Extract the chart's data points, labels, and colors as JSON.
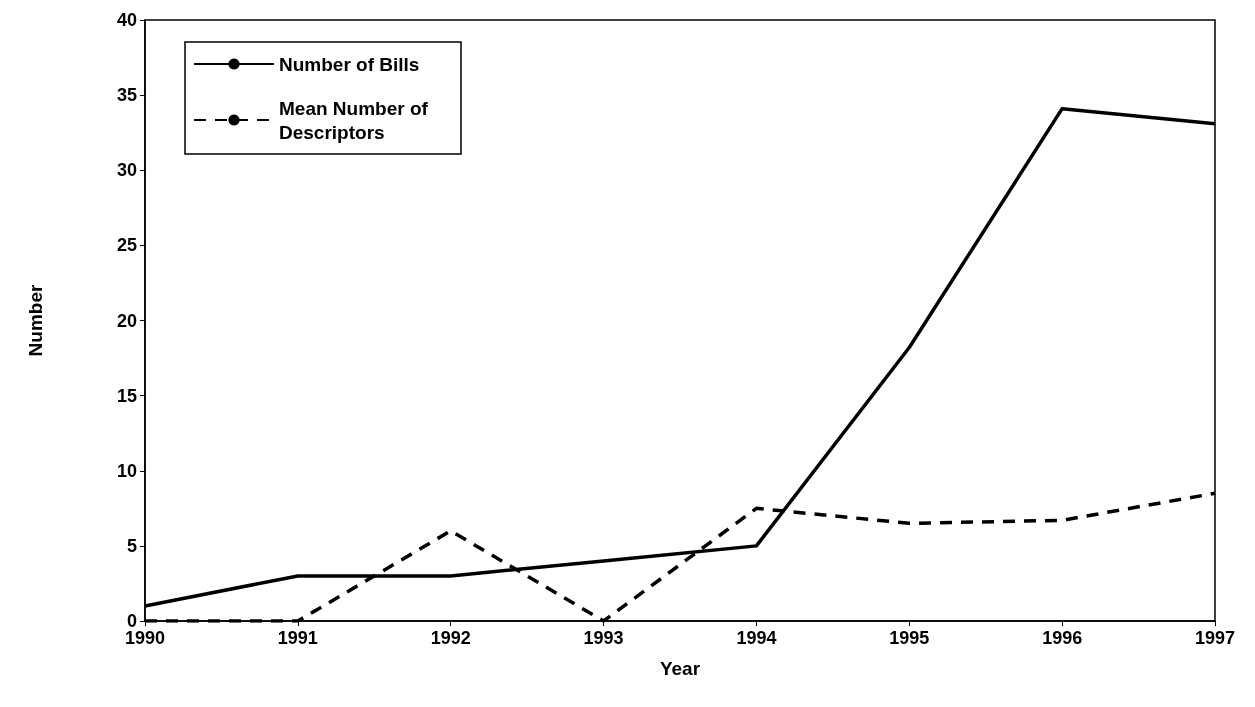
{
  "chart_data": {
    "type": "line",
    "xlabel": "Year",
    "ylabel": "Number",
    "x": [
      1990,
      1991,
      1992,
      1993,
      1994,
      1995,
      1996,
      1997
    ],
    "series": [
      {
        "name": "Number of Bills",
        "color": "#000000",
        "line_style": "solid",
        "values": [
          1,
          3,
          3,
          4,
          5,
          18.2,
          34.1,
          33.1
        ]
      },
      {
        "name": "Mean Number of Descriptors",
        "color": "#000000",
        "line_style": "dashed",
        "values": [
          0,
          0,
          6,
          0,
          7.5,
          6.5,
          6.7,
          8.5
        ]
      }
    ],
    "xlim": [
      1990,
      1997
    ],
    "xticks": [
      1990,
      1991,
      1992,
      1993,
      1994,
      1995,
      1996,
      1997
    ],
    "ylim": [
      0,
      40
    ],
    "yticks": [
      0,
      5,
      10,
      15,
      20,
      25,
      30,
      35,
      40
    ],
    "grid": false,
    "legend": "top left",
    "marker": "none"
  }
}
